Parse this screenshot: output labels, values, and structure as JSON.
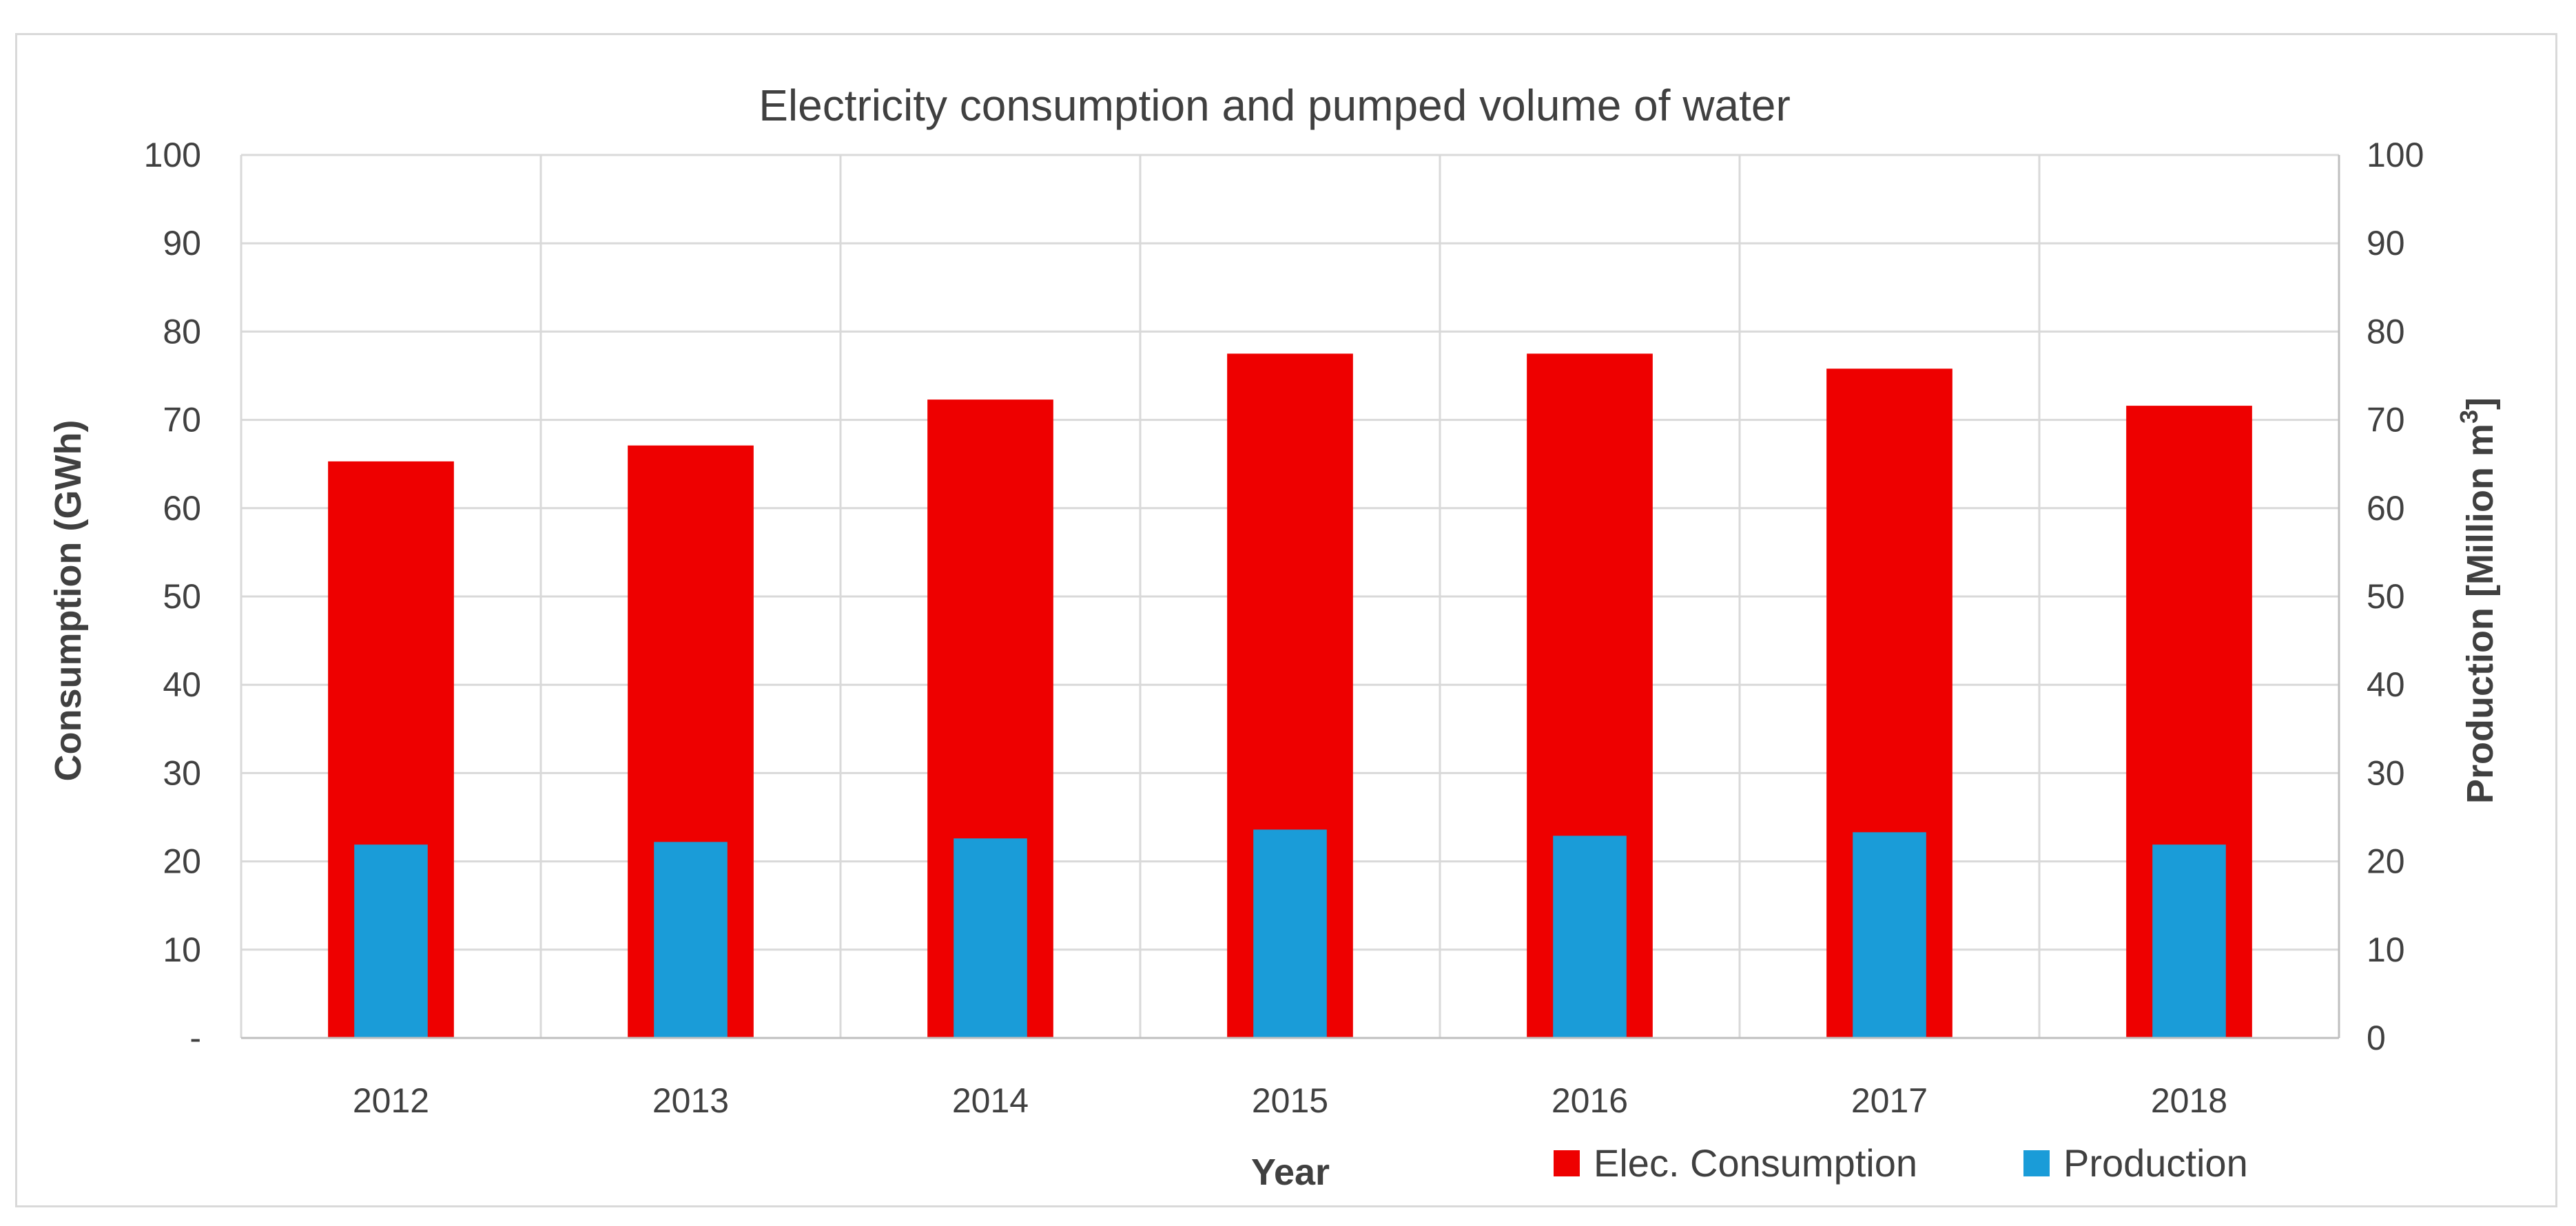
{
  "chart_data": {
    "type": "bar",
    "title": "Electricity consumption and pumped volume of water",
    "xlabel": "Year",
    "ylabel": "Consumption (GWh)",
    "y2label_main": "Production [Million m",
    "y2label_sup": "3",
    "y2label_close": "]",
    "ylim": [
      0,
      100
    ],
    "y2lim": [
      0,
      100
    ],
    "yticks": [
      "-",
      "10",
      "20",
      "30",
      "40",
      "50",
      "60",
      "70",
      "80",
      "90",
      "100"
    ],
    "y2ticks": [
      "0",
      "10",
      "20",
      "30",
      "40",
      "50",
      "60",
      "70",
      "80",
      "90",
      "100"
    ],
    "grid": true,
    "legend_position": "bottom-right",
    "categories": [
      "2012",
      "2013",
      "2014",
      "2015",
      "2016",
      "2017",
      "2018"
    ],
    "series": [
      {
        "name": "Elec. Consumption",
        "axis": "left",
        "color": "#ee0000",
        "values": [
          65.3,
          67.1,
          72.3,
          77.5,
          77.5,
          75.8,
          71.6
        ]
      },
      {
        "name": "Production",
        "axis": "right",
        "color": "#1a9cd8",
        "values": [
          21.9,
          22.2,
          22.6,
          23.6,
          22.9,
          23.3,
          21.9
        ]
      }
    ]
  }
}
